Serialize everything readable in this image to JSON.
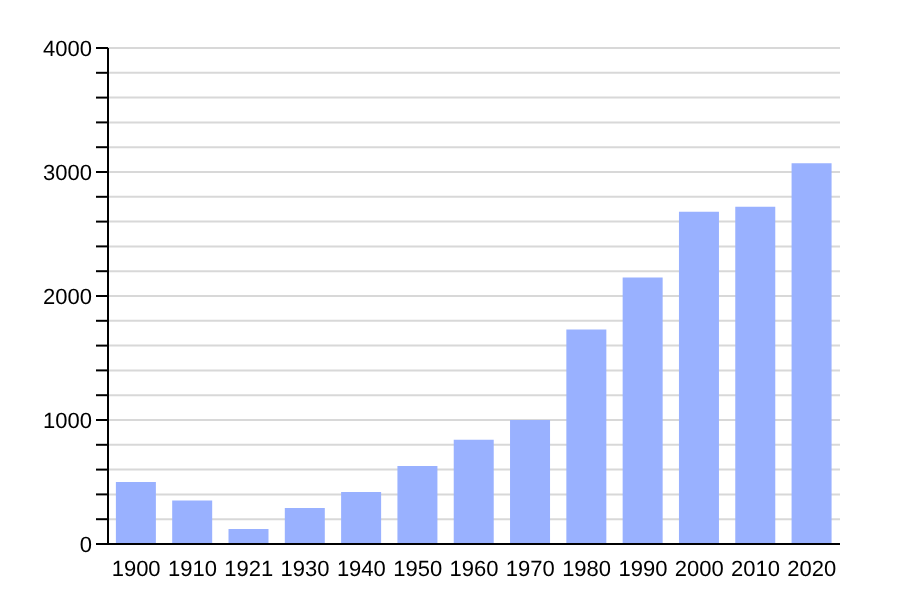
{
  "chart_data": {
    "type": "bar",
    "categories": [
      "1900",
      "1910",
      "1921",
      "1930",
      "1940",
      "1950",
      "1960",
      "1970",
      "1980",
      "1990",
      "2000",
      "2010",
      "2020"
    ],
    "values": [
      500,
      350,
      120,
      290,
      420,
      630,
      840,
      1000,
      1730,
      2150,
      2680,
      2720,
      3070
    ],
    "color": "#99b1ff",
    "ylim": [
      0,
      4000
    ],
    "yticks": [
      0,
      {
        "value": 200,
        "label": null
      },
      {
        "value": 400,
        "label": null
      },
      {
        "value": 600,
        "label": null
      },
      {
        "value": 800,
        "label": null
      },
      1000,
      {
        "value": 1200,
        "label": null
      },
      {
        "value": 1400,
        "label": null
      },
      {
        "value": 1600,
        "label": null
      },
      {
        "value": 1800,
        "label": null
      },
      2000,
      {
        "value": 2200,
        "label": null
      },
      {
        "value": 2400,
        "label": null
      },
      {
        "value": 2600,
        "label": null
      },
      {
        "value": 2800,
        "label": null
      },
      3000,
      {
        "value": 3200,
        "label": null
      },
      {
        "value": 3400,
        "label": null
      },
      {
        "value": 3600,
        "label": null
      },
      {
        "value": 3800,
        "label": null
      },
      4000
    ],
    "grid": "y",
    "legend": false
  }
}
